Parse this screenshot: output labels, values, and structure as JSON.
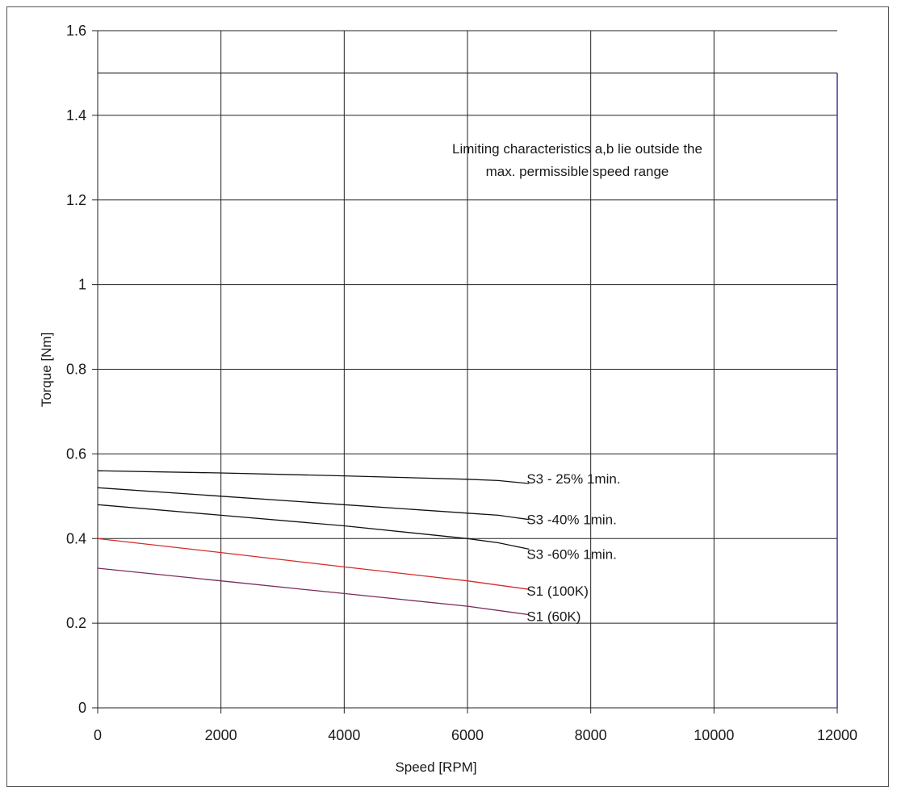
{
  "chart_data": {
    "type": "line",
    "title": "",
    "xlabel": "Speed [RPM]",
    "ylabel": "Torque [Nm]",
    "xlim": [
      0,
      12000
    ],
    "ylim": [
      0,
      1.6
    ],
    "x_ticks": [
      0,
      2000,
      4000,
      6000,
      8000,
      10000,
      12000
    ],
    "y_ticks": [
      0,
      0.2,
      0.4,
      0.6,
      0.8,
      1.0,
      1.2,
      1.4,
      1.6
    ],
    "x_tick_labels": [
      "0",
      "2000",
      "4000",
      "6000",
      "8000",
      "10000",
      "12000"
    ],
    "y_tick_labels": [
      "0",
      "0.2",
      "0.4",
      "0.6",
      "0.8",
      "1",
      "1.2",
      "1.4",
      "1.6"
    ],
    "grid": true,
    "max_speed_boundary": {
      "torque": 1.5,
      "speed": 12000,
      "color": "#3a3a9a"
    },
    "annotation": [
      "Limiting characteristics a,b lie outside the",
      "max. permissible speed range"
    ],
    "series": [
      {
        "name": "S3 - 25% 1min.",
        "color": "#111111",
        "x": [
          0,
          2000,
          4000,
          6000,
          6500,
          7000
        ],
        "y": [
          0.56,
          0.555,
          0.548,
          0.54,
          0.537,
          0.53
        ]
      },
      {
        "name": "S3 -40% 1min.",
        "color": "#111111",
        "x": [
          0,
          2000,
          4000,
          6000,
          6500,
          7000
        ],
        "y": [
          0.52,
          0.5,
          0.48,
          0.46,
          0.455,
          0.445
        ]
      },
      {
        "name": "S3 -60% 1min.",
        "color": "#111111",
        "x": [
          0,
          2000,
          4000,
          6000,
          6500,
          7000
        ],
        "y": [
          0.48,
          0.455,
          0.43,
          0.4,
          0.39,
          0.375
        ]
      },
      {
        "name": "S1 (100K)",
        "color": "#d42a2a",
        "x": [
          0,
          2000,
          4000,
          6000,
          7000
        ],
        "y": [
          0.4,
          0.367,
          0.333,
          0.3,
          0.28
        ]
      },
      {
        "name": "S1 (60K)",
        "color": "#7a2a5a",
        "x": [
          0,
          2000,
          4000,
          6000,
          7000
        ],
        "y": [
          0.33,
          0.3,
          0.27,
          0.24,
          0.22
        ]
      }
    ]
  }
}
